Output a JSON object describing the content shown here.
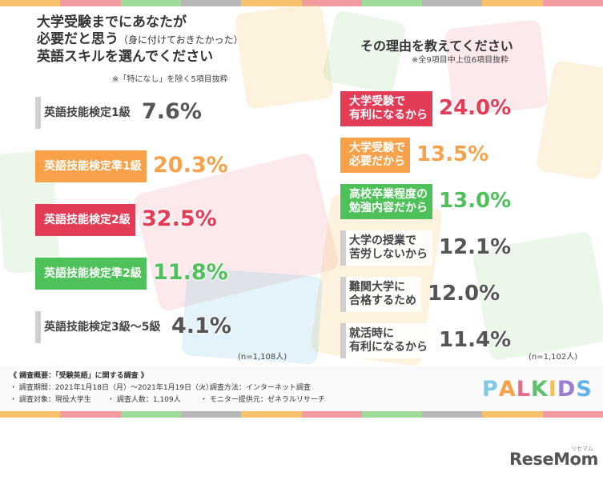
{
  "colors": {
    "stripes": [
      "#f7c26b",
      "#f29aa2",
      "#9fdc9a",
      "#b7b7b7",
      "#f7c26b",
      "#f29aa2",
      "#9fdc9a",
      "#b7b7b7",
      "#f7c26b",
      "#f29aa2"
    ],
    "gray": "#cfcfcf",
    "orange": "#f7a24a",
    "red": "#e23c57",
    "green": "#4fc15a",
    "logo": [
      "#7ec8e3",
      "#f7a24a",
      "#e86a8a",
      "#5cc36b",
      "#f2c24a",
      "#9a7fd1",
      "#5fb3e8"
    ]
  },
  "left_panel": {
    "title_line1": "大学受験までにあなたが",
    "title_line2": "必要だと思う",
    "title_line2_small": "（身に付けておきたかった）",
    "title_line3": "英語スキルを選んでください",
    "note": "※「特になし」を除く5項目抜粋",
    "n_label": "(n=1,108人)"
  },
  "right_panel": {
    "title": "その理由を教えてください",
    "note": "※全9項目中上位6項目抜粋",
    "n_label": "(n=1,102人)"
  },
  "chart_data": [
    {
      "type": "bar",
      "title": "大学受験までにあなたが必要だと思う（身に付けておきたかった）英語スキルを選んでください",
      "categories": [
        "英語技能検定1級",
        "英語技能検定準1級",
        "英語技能検定2級",
        "英語技能検定準2級",
        "英語技能検定3級〜5級"
      ],
      "values": [
        7.6,
        20.3,
        32.5,
        11.8,
        4.1
      ],
      "labels": [
        "7.6%",
        "20.3%",
        "32.5%",
        "11.8%",
        "4.1%"
      ],
      "styles": [
        "gray",
        "orange",
        "red",
        "green",
        "gray"
      ],
      "highlight": [
        false,
        true,
        true,
        true,
        false
      ]
    },
    {
      "type": "bar",
      "title": "その理由を教えてください",
      "categories": [
        [
          "大学受験で",
          "有利になるから"
        ],
        [
          "大学受験で",
          "必要だから"
        ],
        [
          "高校卒業程度の",
          "勉強内容だから"
        ],
        [
          "大学の授業で",
          "苦労しないから"
        ],
        [
          "難関大学に",
          "合格するため"
        ],
        [
          "就活時に",
          "有利になるから"
        ]
      ],
      "values": [
        24.0,
        13.5,
        13.0,
        12.1,
        12.0,
        11.4
      ],
      "labels": [
        "24.0%",
        "13.5%",
        "13.0%",
        "12.1%",
        "12.0%",
        "11.4%"
      ],
      "styles": [
        "red",
        "orange",
        "green",
        "gray",
        "gray",
        "gray"
      ],
      "highlight": [
        true,
        true,
        true,
        false,
        false,
        false
      ]
    }
  ],
  "footer": {
    "heading": "《 調査概要：「受験英語」に関する調査 》",
    "period": "・ 調査期間：2021年1月18日（月）〜2021年1月19日（火）",
    "method": "・ 調査方法：インターネット調査",
    "target": "・ 調査対象：現役大学生",
    "count": "・ 調査人数：1,109人",
    "provider": "・ モニター提供元：ゼネラルリサーチ",
    "logo": "PALKIDS"
  },
  "watermark": {
    "brand": "ReseMom",
    "sub": "リセマム"
  }
}
